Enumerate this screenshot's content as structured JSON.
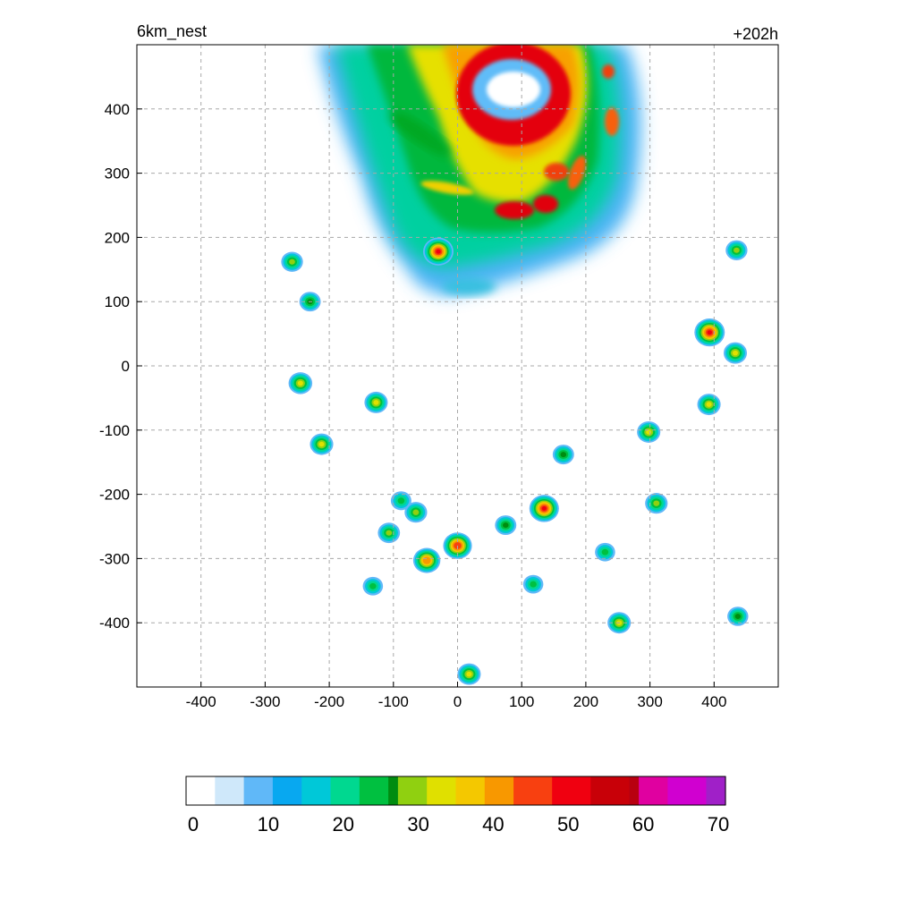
{
  "chart_data": {
    "type": "heatmap",
    "title": "6km_nest",
    "subtitle": "+202h",
    "xlabel": "",
    "ylabel": "",
    "xlim": [
      -500,
      500
    ],
    "ylim": [
      -500,
      500
    ],
    "x_ticks": [
      -400,
      -300,
      -200,
      -100,
      0,
      100,
      200,
      300,
      400
    ],
    "y_ticks": [
      400,
      300,
      200,
      100,
      0,
      -100,
      -200,
      -300,
      -400
    ],
    "grid": true,
    "grid_style": "dashed",
    "colorbar": {
      "min": 0,
      "max": 70,
      "ticks": [
        0,
        10,
        20,
        30,
        40,
        50,
        60,
        70
      ],
      "position": "bottom",
      "stops": [
        {
          "value": 0,
          "color": "#ffffff"
        },
        {
          "value": 4,
          "color": "#cfe8fa"
        },
        {
          "value": 8,
          "color": "#60b8f8"
        },
        {
          "value": 11,
          "color": "#08a8f0"
        },
        {
          "value": 15,
          "color": "#00c8d8"
        },
        {
          "value": 19,
          "color": "#00d890"
        },
        {
          "value": 23,
          "color": "#00c040"
        },
        {
          "value": 26,
          "color": "#008c10"
        },
        {
          "value": 28,
          "color": "#90d010"
        },
        {
          "value": 31,
          "color": "#e0e000"
        },
        {
          "value": 35,
          "color": "#f4c800"
        },
        {
          "value": 39,
          "color": "#f89800"
        },
        {
          "value": 43,
          "color": "#f84010"
        },
        {
          "value": 47,
          "color": "#f00010"
        },
        {
          "value": 53,
          "color": "#c80008"
        },
        {
          "value": 57,
          "color": "#b80010"
        },
        {
          "value": 59,
          "color": "#e000a0"
        },
        {
          "value": 63,
          "color": "#d000d0"
        },
        {
          "value": 67,
          "color": "#a020c8"
        },
        {
          "value": 70,
          "color": "#a890e0"
        }
      ]
    },
    "features": [
      {
        "kind": "eyewall",
        "x": 80,
        "y": 430,
        "value": 50
      },
      {
        "kind": "rainband",
        "x": 10,
        "y": 400,
        "value": 25
      },
      {
        "kind": "cell",
        "x": -258,
        "y": 162,
        "value": 28
      },
      {
        "kind": "cell",
        "x": -230,
        "y": 100,
        "value": 27
      },
      {
        "kind": "cell",
        "x": -30,
        "y": 178,
        "value": 50
      },
      {
        "kind": "cell",
        "x": 435,
        "y": 180,
        "value": 28
      },
      {
        "kind": "cell",
        "x": 393,
        "y": 52,
        "value": 50
      },
      {
        "kind": "cell",
        "x": 433,
        "y": 20,
        "value": 32
      },
      {
        "kind": "cell",
        "x": -245,
        "y": -27,
        "value": 33
      },
      {
        "kind": "cell",
        "x": -127,
        "y": -57,
        "value": 32
      },
      {
        "kind": "cell",
        "x": -212,
        "y": -122,
        "value": 32
      },
      {
        "kind": "cell",
        "x": 392,
        "y": -60,
        "value": 32
      },
      {
        "kind": "cell",
        "x": 298,
        "y": -103,
        "value": 32
      },
      {
        "kind": "cell",
        "x": 165,
        "y": -138,
        "value": 27
      },
      {
        "kind": "cell",
        "x": 135,
        "y": -222,
        "value": 48
      },
      {
        "kind": "cell",
        "x": 310,
        "y": -214,
        "value": 30
      },
      {
        "kind": "cell",
        "x": -107,
        "y": -260,
        "value": 29
      },
      {
        "kind": "cell",
        "x": -65,
        "y": -228,
        "value": 30
      },
      {
        "kind": "cell",
        "x": -88,
        "y": -210,
        "value": 25
      },
      {
        "kind": "cell",
        "x": -48,
        "y": -303,
        "value": 42
      },
      {
        "kind": "cell",
        "x": 0,
        "y": -280,
        "value": 46
      },
      {
        "kind": "cell",
        "x": 75,
        "y": -248,
        "value": 27
      },
      {
        "kind": "cell",
        "x": 230,
        "y": -290,
        "value": 24
      },
      {
        "kind": "cell",
        "x": 118,
        "y": -340,
        "value": 24
      },
      {
        "kind": "cell",
        "x": -132,
        "y": -343,
        "value": 24
      },
      {
        "kind": "cell",
        "x": 252,
        "y": -400,
        "value": 32
      },
      {
        "kind": "cell",
        "x": 437,
        "y": -390,
        "value": 26
      },
      {
        "kind": "cell",
        "x": 18,
        "y": -480,
        "value": 32
      }
    ]
  }
}
